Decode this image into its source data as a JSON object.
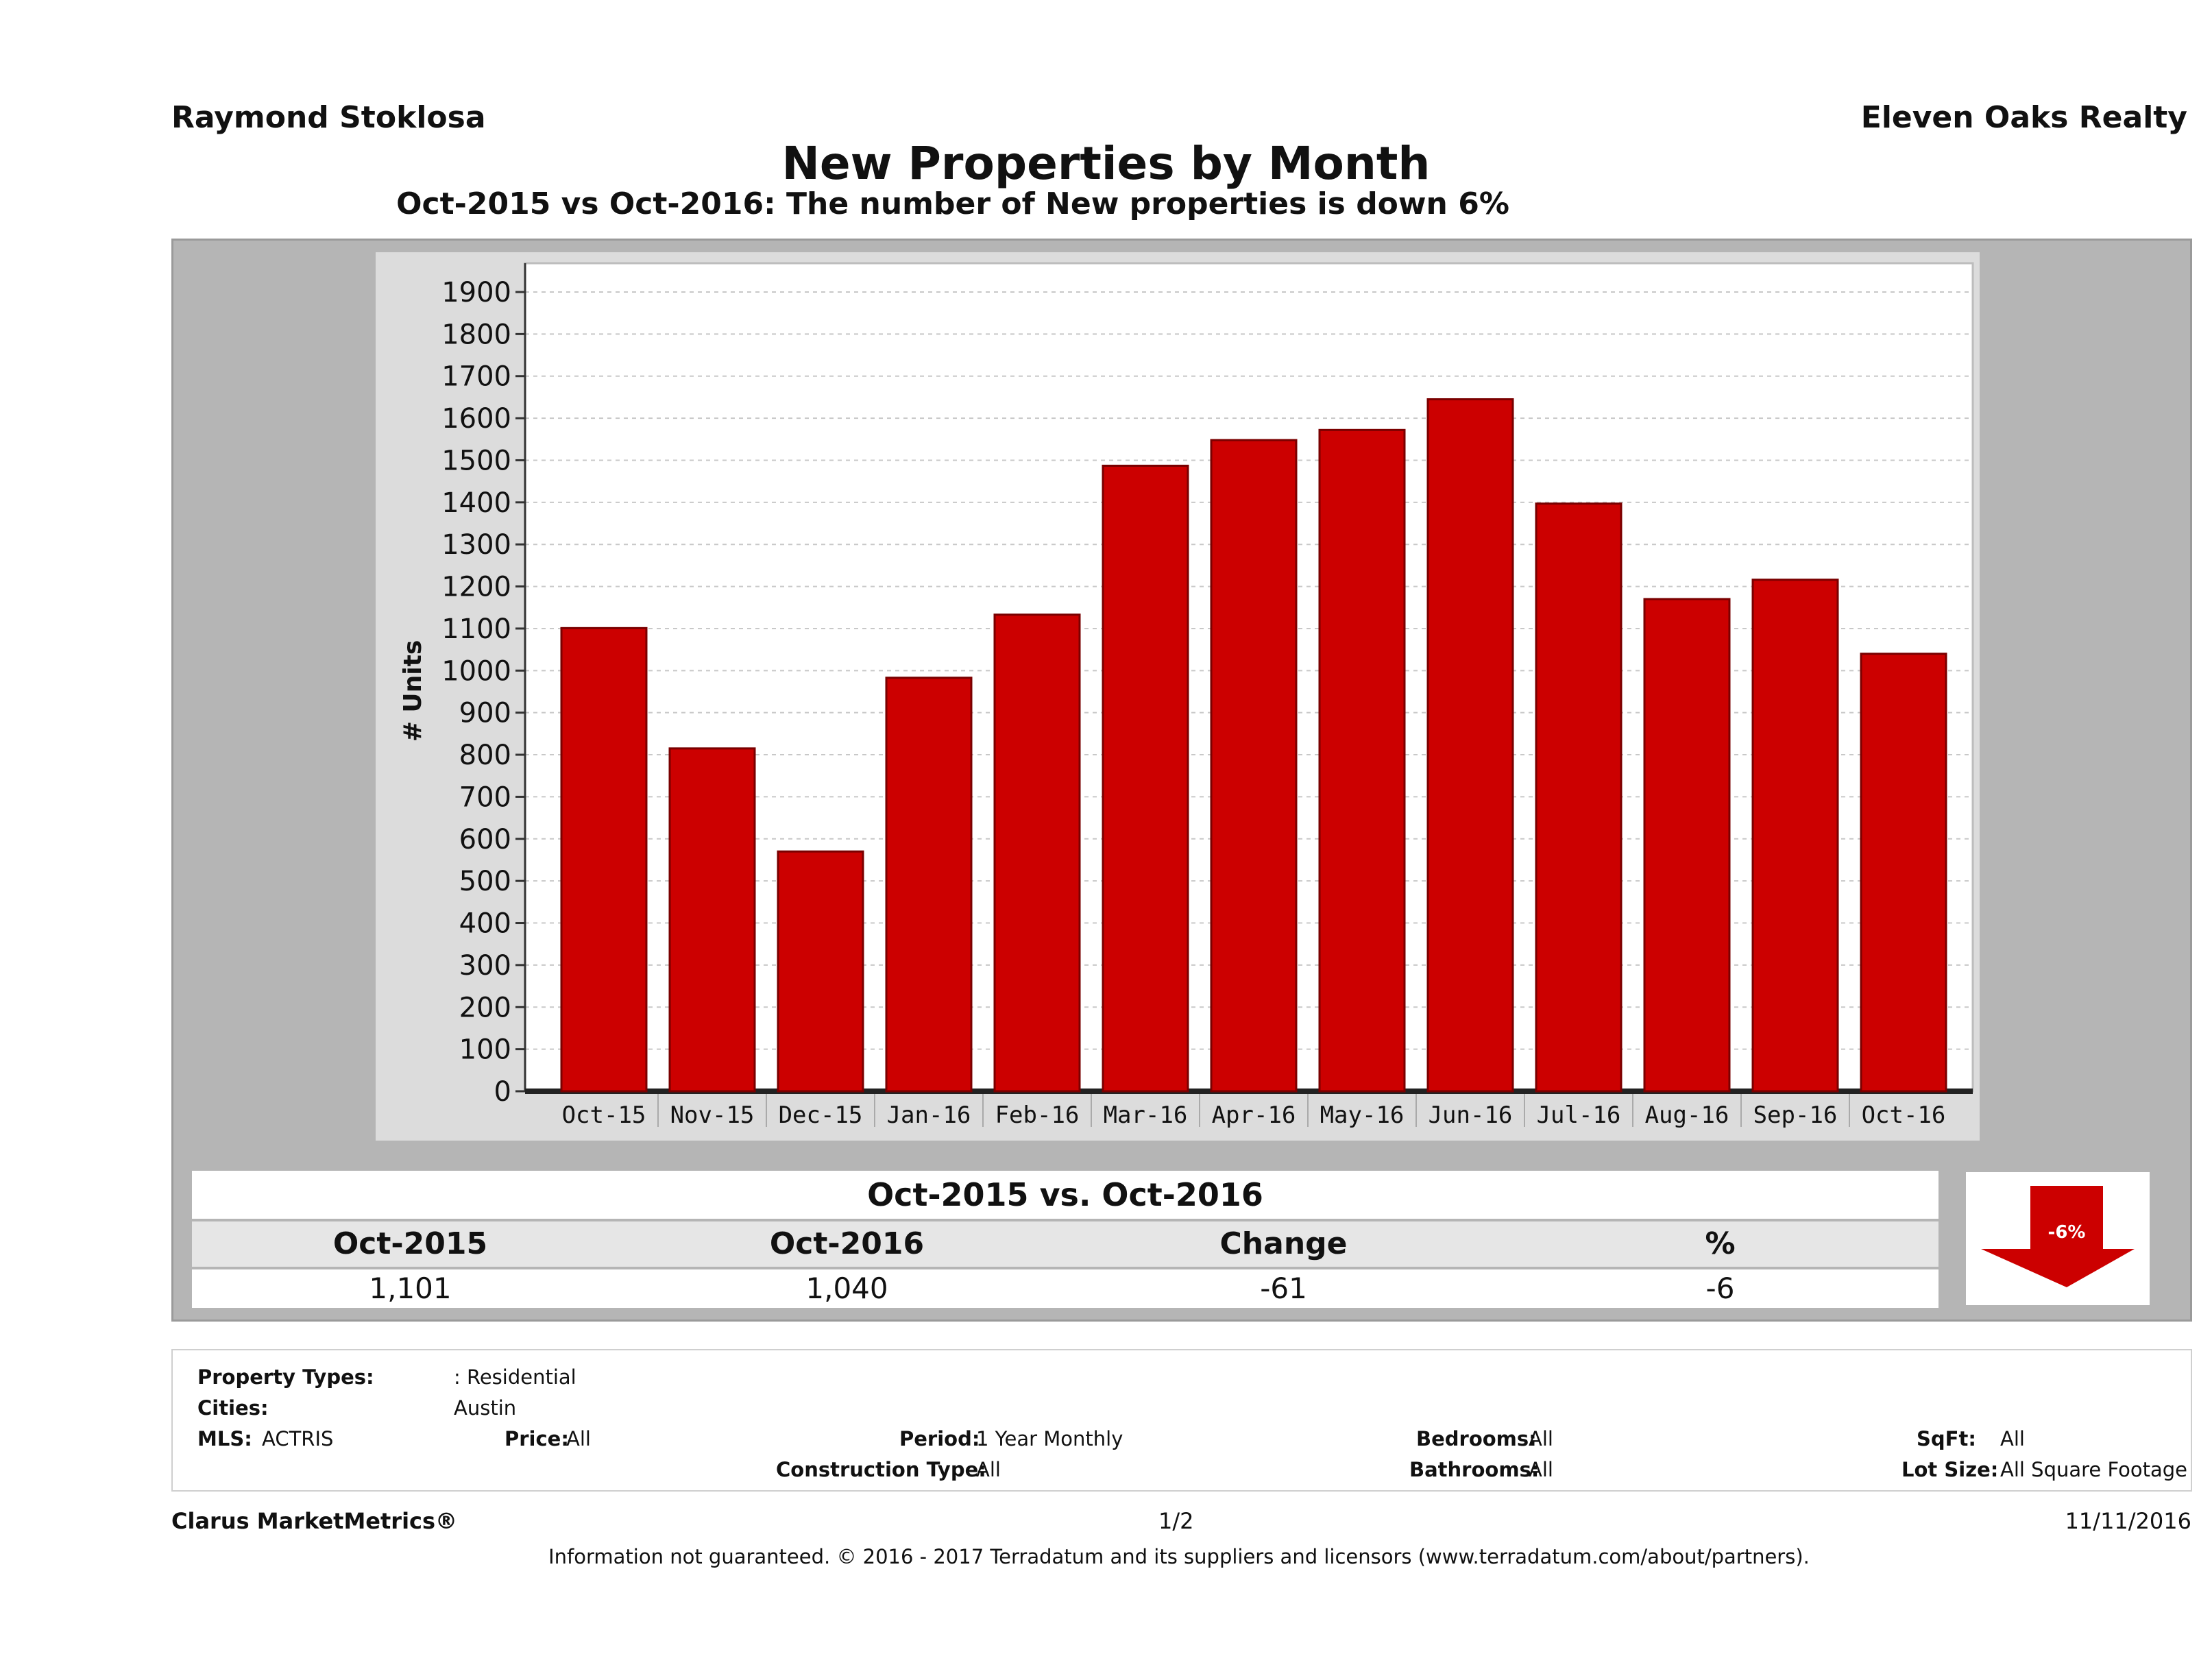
{
  "header": {
    "agent_name": "Raymond Stoklosa",
    "company_name": "Eleven Oaks Realty"
  },
  "title": "New Properties by Month",
  "subtitle": "Oct-2015 vs Oct-2016: The number of New   properties is down 6%",
  "chart_data": {
    "type": "bar",
    "categories": [
      "Oct-15",
      "Nov-15",
      "Dec-15",
      "Jan-16",
      "Feb-16",
      "Mar-16",
      "Apr-16",
      "May-16",
      "Jun-16",
      "Jul-16",
      "Aug-16",
      "Sep-16",
      "Oct-16"
    ],
    "values": [
      1101,
      815,
      570,
      983,
      1133,
      1487,
      1548,
      1572,
      1645,
      1397,
      1170,
      1216,
      1040
    ],
    "ylabel": "# Units",
    "xlabel": "",
    "ylim": [
      0,
      1900
    ],
    "yticks": [
      0,
      100,
      200,
      300,
      400,
      500,
      600,
      700,
      800,
      900,
      1000,
      1100,
      1200,
      1300,
      1400,
      1500,
      1600,
      1700,
      1800,
      1900
    ],
    "bar_color": "#cc0000",
    "grid": true
  },
  "summary": {
    "title": "Oct-2015 vs. Oct-2016",
    "headers": [
      "Oct-2015",
      "Oct-2016",
      "Change",
      "%"
    ],
    "values": [
      "1,101",
      "1,040",
      "-61",
      "-6"
    ],
    "badge": "-6%",
    "badge_color": "#cc0000",
    "badge_icon": "down-arrow-icon"
  },
  "filters": {
    "property_types_label": "Property Types:",
    "property_types_value": ": Residential",
    "cities_label": "Cities:",
    "cities_value": "Austin",
    "mls_label": "MLS:",
    "mls_value": "ACTRIS",
    "price_label": "Price:",
    "price_value": "All",
    "period_label": "Period:",
    "period_value": "1 Year Monthly",
    "construction_label": "Construction Type:",
    "construction_value": "All",
    "bedrooms_label": "Bedrooms:",
    "bedrooms_value": "All",
    "bathrooms_label": "Bathrooms:",
    "bathrooms_value": "All",
    "sqft_label": "SqFt:",
    "sqft_value": "All",
    "lotsize_label": "Lot Size:",
    "lotsize_value": "All Square Footage"
  },
  "footer": {
    "brand": "Clarus MarketMetrics®",
    "page": "1/2",
    "date": "11/11/2016",
    "disclaimer": "Information not guaranteed. © 2016 - 2017 Terradatum and its suppliers and licensors (www.terradatum.com/about/partners)."
  }
}
